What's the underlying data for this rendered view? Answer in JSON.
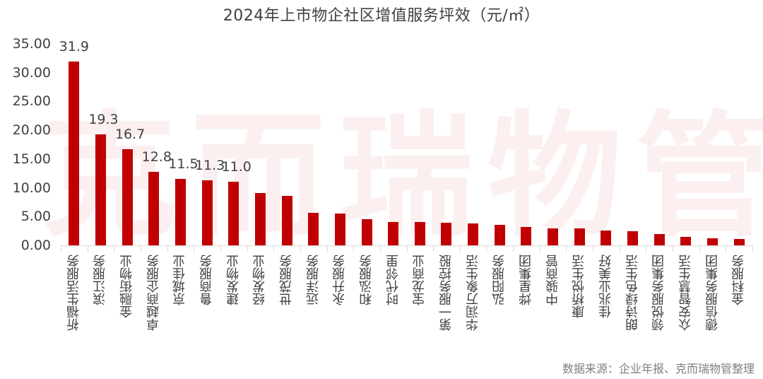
{
  "chart_data": {
    "type": "bar",
    "title": "2024年上市物企社区增值服务坪效（元/㎡）",
    "xlabel": "",
    "ylabel": "",
    "ylim": [
      0,
      35
    ],
    "yticks": [
      "0.00",
      "5.00",
      "10.00",
      "15.00",
      "20.00",
      "25.00",
      "30.00",
      "35.00"
    ],
    "grid": false,
    "legend": null,
    "bar_color": "#c00000",
    "categories": [
      "祈福生活服务",
      "滨江服务",
      "金融街物业",
      "卓越商企服务",
      "京城佳业",
      "鲁商服务",
      "建发物业",
      "经发物业",
      "世茂服务",
      "远洋服务",
      "永升服务",
      "和泓服务",
      "时代邻里",
      "宝龙商业",
      "第一服务控股",
      "华润万象生活",
      "弘阳服务",
      "烨星集团",
      "中骏商管",
      "康桥悦生活",
      "佳兆业美好",
      "朗诗绿色生活",
      "领悦服务集团",
      "众安智慧生活",
      "德信服务集团",
      "金科服务"
    ],
    "values": [
      31.9,
      19.3,
      16.7,
      12.8,
      11.5,
      11.3,
      11.0,
      9.1,
      8.6,
      5.6,
      5.5,
      4.5,
      4.1,
      4.0,
      3.9,
      3.8,
      3.6,
      3.2,
      2.9,
      2.9,
      2.6,
      2.4,
      2.0,
      1.5,
      1.2,
      1.1
    ],
    "data_labels": [
      "31.9",
      "19.3",
      "16.7",
      "12.8",
      "11.5",
      "11.3",
      "11.0",
      "",
      "",
      "",
      "",
      "",
      "",
      "",
      "",
      "",
      "",
      "",
      "",
      "",
      "",
      "",
      "",
      "",
      "",
      ""
    ],
    "annotations": [
      "克而瑞物管"
    ]
  },
  "title": "2024年上市物企社区增值服务坪效（元/㎡）",
  "watermark": "克而瑞物管",
  "source": "数据来源：企业年报、克而瑞物管整理"
}
